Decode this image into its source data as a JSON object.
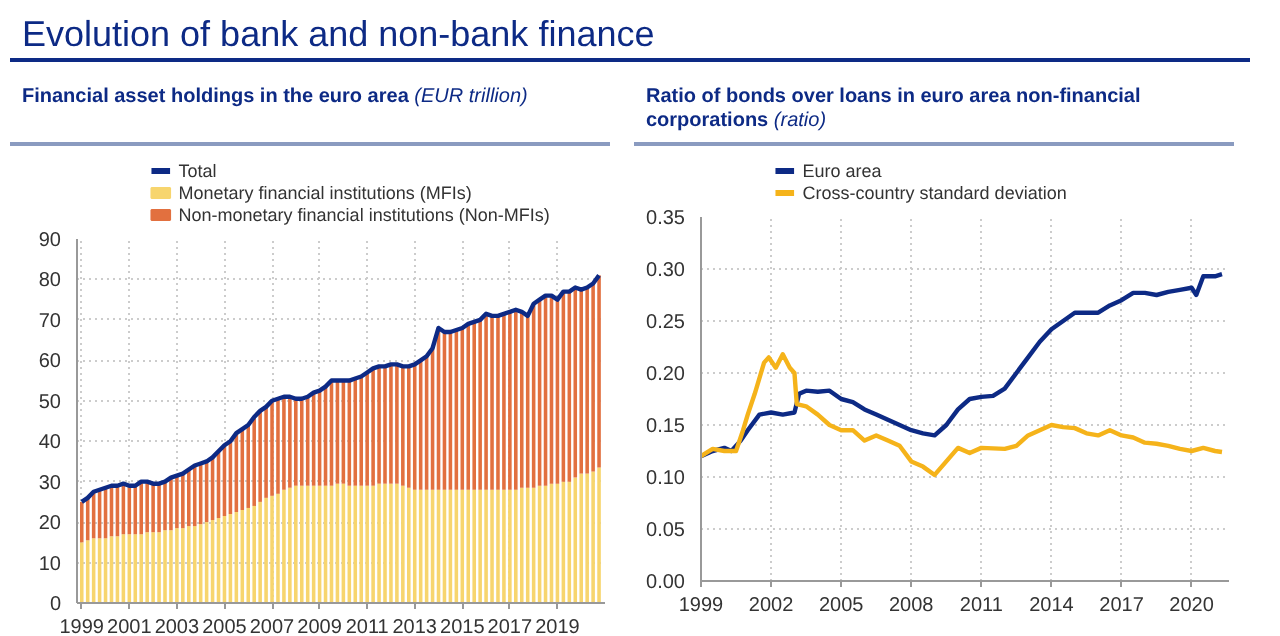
{
  "chart_data": [
    {
      "type": "bar",
      "stacked": true,
      "title": "Financial asset holdings in the euro area",
      "subtitle": "(EUR trillion)",
      "annotations": [
        "Evolution of bank and non-bank finance"
      ],
      "x": [
        1999,
        1999.25,
        1999.5,
        1999.75,
        2000,
        2000.25,
        2000.5,
        2000.75,
        2001,
        2001.25,
        2001.5,
        2001.75,
        2002,
        2002.25,
        2002.5,
        2002.75,
        2003,
        2003.25,
        2003.5,
        2003.75,
        2004,
        2004.25,
        2004.5,
        2004.75,
        2005,
        2005.25,
        2005.5,
        2005.75,
        2006,
        2006.25,
        2006.5,
        2006.75,
        2007,
        2007.25,
        2007.5,
        2007.75,
        2008,
        2008.25,
        2008.5,
        2008.75,
        2009,
        2009.25,
        2009.5,
        2009.75,
        2010,
        2010.25,
        2010.5,
        2010.75,
        2011,
        2011.25,
        2011.5,
        2011.75,
        2012,
        2012.25,
        2012.5,
        2012.75,
        2013,
        2013.25,
        2013.5,
        2013.75,
        2014,
        2014.25,
        2014.5,
        2014.75,
        2015,
        2015.25,
        2015.5,
        2015.75,
        2016,
        2016.25,
        2016.5,
        2016.75,
        2017,
        2017.25,
        2017.5,
        2017.75,
        2018,
        2018.25,
        2018.5,
        2018.75,
        2019,
        2019.25,
        2019.5,
        2019.75,
        2020,
        2020.25,
        2020.5,
        2020.75
      ],
      "series": [
        {
          "name": "Total",
          "type": "line",
          "color": "#0d2a85",
          "values": [
            25,
            26,
            27.5,
            28,
            28.5,
            29,
            29,
            29.5,
            29,
            29,
            30,
            30,
            29.5,
            29.5,
            30,
            31,
            31.5,
            32,
            33,
            34,
            34.5,
            35,
            36,
            37.5,
            39,
            40,
            42,
            43,
            44,
            46,
            47.5,
            48.5,
            50,
            50.5,
            51,
            51,
            50.5,
            50.5,
            51,
            52,
            52.5,
            53.5,
            55,
            55,
            55,
            55,
            55.5,
            56,
            57,
            58,
            58.5,
            58.5,
            59,
            59,
            58.5,
            58.5,
            59,
            60,
            61,
            63,
            68,
            67,
            67,
            67.5,
            68,
            69,
            69.5,
            70,
            71.5,
            71,
            71,
            71.5,
            72,
            72.5,
            72,
            71,
            74,
            75,
            76,
            76,
            75,
            77,
            77,
            78,
            77.5,
            78,
            79,
            81
          ]
        },
        {
          "name": "Monetary financial institutions (MFIs)",
          "color": "#f7d56e",
          "values": [
            15,
            15.5,
            16,
            16,
            16,
            16.5,
            16.5,
            17,
            17,
            17,
            17,
            17.5,
            17.5,
            17.5,
            18,
            18,
            18.5,
            18.5,
            19,
            19,
            19.5,
            20,
            20.5,
            21,
            21.5,
            22,
            22.5,
            23,
            23.5,
            24,
            25,
            26,
            26.5,
            27,
            28,
            28.5,
            29,
            29,
            29,
            29,
            29,
            29,
            29,
            29.5,
            29.5,
            29,
            29,
            29,
            29,
            29,
            29.5,
            29.5,
            29.5,
            29.5,
            29,
            28.5,
            28,
            28,
            28,
            28,
            28,
            28,
            28,
            28,
            28,
            28,
            28,
            28,
            28,
            28,
            28,
            28,
            28,
            28,
            28.5,
            28.5,
            28.5,
            29,
            29,
            29.5,
            29.5,
            30,
            30,
            31,
            32,
            32,
            32.5,
            33.5
          ]
        },
        {
          "name": "Non-monetary financial institutions (Non-MFIs)",
          "color": "#e2703f",
          "values": [
            10,
            10.5,
            11.5,
            12,
            12.5,
            12.5,
            12.5,
            12.5,
            12,
            12,
            13,
            12.5,
            12,
            12,
            12,
            13,
            13,
            13.5,
            14,
            15,
            15,
            15,
            15.5,
            16.5,
            17.5,
            18,
            19.5,
            20,
            20.5,
            22,
            22.5,
            22.5,
            23.5,
            23.5,
            23,
            22.5,
            21.5,
            21.5,
            22,
            23,
            23.5,
            24.5,
            26,
            25.5,
            25.5,
            26,
            26.5,
            27,
            28,
            29,
            29,
            29,
            29.5,
            29.5,
            29.5,
            30,
            31,
            32,
            33,
            35,
            40,
            39,
            39,
            39.5,
            40,
            41,
            41.5,
            42,
            43.5,
            43,
            43,
            43.5,
            44,
            44.5,
            43.5,
            42.5,
            45.5,
            46,
            47,
            46.5,
            45.5,
            47,
            47,
            47,
            45.5,
            46,
            46.5,
            47.5
          ]
        }
      ],
      "xlim": [
        1998.8,
        2021.0
      ],
      "xticks": [
        1999,
        2001,
        2003,
        2005,
        2007,
        2009,
        2011,
        2013,
        2015,
        2017,
        2019
      ],
      "ylim": [
        0,
        90
      ],
      "yticks": [
        0,
        10,
        20,
        30,
        40,
        50,
        60,
        70,
        80,
        90
      ],
      "grid": true,
      "legend": "top left"
    },
    {
      "type": "line",
      "title": "Ratio of bonds over loans in euro area non-financial corporations",
      "subtitle": "(ratio)",
      "series": [
        {
          "name": "Euro area",
          "color": "#0d2a85",
          "x": [
            1999,
            1999.5,
            2000,
            2000.3,
            2000.7,
            2001,
            2001.5,
            2002,
            2002.5,
            2003,
            2003.2,
            2003.5,
            2004,
            2004.5,
            2005,
            2005.5,
            2006,
            2006.5,
            2007,
            2007.5,
            2008,
            2008.5,
            2009,
            2009.5,
            2010,
            2010.5,
            2011,
            2011.5,
            2012,
            2012.5,
            2013,
            2013.5,
            2014,
            2014.5,
            2015,
            2015.5,
            2016,
            2016.5,
            2017,
            2017.5,
            2018,
            2018.5,
            2019,
            2019.5,
            2020,
            2020.2,
            2020.5,
            2021,
            2021.3
          ],
          "values": [
            0.12,
            0.125,
            0.128,
            0.125,
            0.135,
            0.145,
            0.16,
            0.162,
            0.16,
            0.162,
            0.18,
            0.183,
            0.182,
            0.183,
            0.175,
            0.172,
            0.165,
            0.16,
            0.155,
            0.15,
            0.145,
            0.142,
            0.14,
            0.15,
            0.165,
            0.175,
            0.177,
            0.178,
            0.185,
            0.2,
            0.215,
            0.23,
            0.242,
            0.25,
            0.258,
            0.258,
            0.258,
            0.265,
            0.27,
            0.277,
            0.277,
            0.275,
            0.278,
            0.28,
            0.282,
            0.275,
            0.293,
            0.293,
            0.295
          ]
        },
        {
          "name": "Cross-country standard deviation",
          "color": "#f5b31a",
          "x": [
            1999,
            1999.5,
            2000,
            2000.5,
            2000.8,
            2001,
            2001.3,
            2001.7,
            2001.9,
            2002.2,
            2002.5,
            2002.8,
            2003,
            2003.1,
            2003.5,
            2004,
            2004.5,
            2005,
            2005.5,
            2006,
            2006.5,
            2007,
            2007.5,
            2008,
            2008.5,
            2009,
            2009.5,
            2010,
            2010.5,
            2011,
            2012,
            2012.5,
            2013,
            2013.5,
            2014,
            2014.5,
            2015,
            2015.5,
            2016,
            2016.5,
            2017,
            2017.5,
            2018,
            2018.5,
            2019,
            2019.5,
            2020,
            2020.5,
            2021,
            2021.3
          ],
          "values": [
            0.12,
            0.127,
            0.125,
            0.125,
            0.145,
            0.16,
            0.18,
            0.21,
            0.215,
            0.205,
            0.218,
            0.205,
            0.2,
            0.17,
            0.168,
            0.16,
            0.15,
            0.145,
            0.145,
            0.135,
            0.14,
            0.135,
            0.13,
            0.115,
            0.11,
            0.102,
            0.115,
            0.128,
            0.123,
            0.128,
            0.127,
            0.13,
            0.14,
            0.145,
            0.15,
            0.148,
            0.147,
            0.142,
            0.14,
            0.145,
            0.14,
            0.138,
            0.133,
            0.132,
            0.13,
            0.127,
            0.125,
            0.128,
            0.125,
            0.124
          ]
        }
      ],
      "xlim": [
        1999,
        2021.6
      ],
      "xticks": [
        1999,
        2002,
        2005,
        2008,
        2011,
        2014,
        2017,
        2020
      ],
      "ylim": [
        0,
        0.35
      ],
      "yticks": [
        {
          "value": 0,
          "label": "0.00"
        },
        {
          "value": 0.05,
          "label": "0.05"
        },
        {
          "value": 0.1,
          "label": "0.10"
        },
        {
          "value": 0.15,
          "label": "0.15"
        },
        {
          "value": 0.2,
          "label": "0.20"
        },
        {
          "value": 0.25,
          "label": "0.25"
        },
        {
          "value": 0.3,
          "label": "0.30"
        },
        {
          "value": 0.35,
          "label": "0.35"
        }
      ],
      "grid": true,
      "legend": "top left"
    }
  ]
}
